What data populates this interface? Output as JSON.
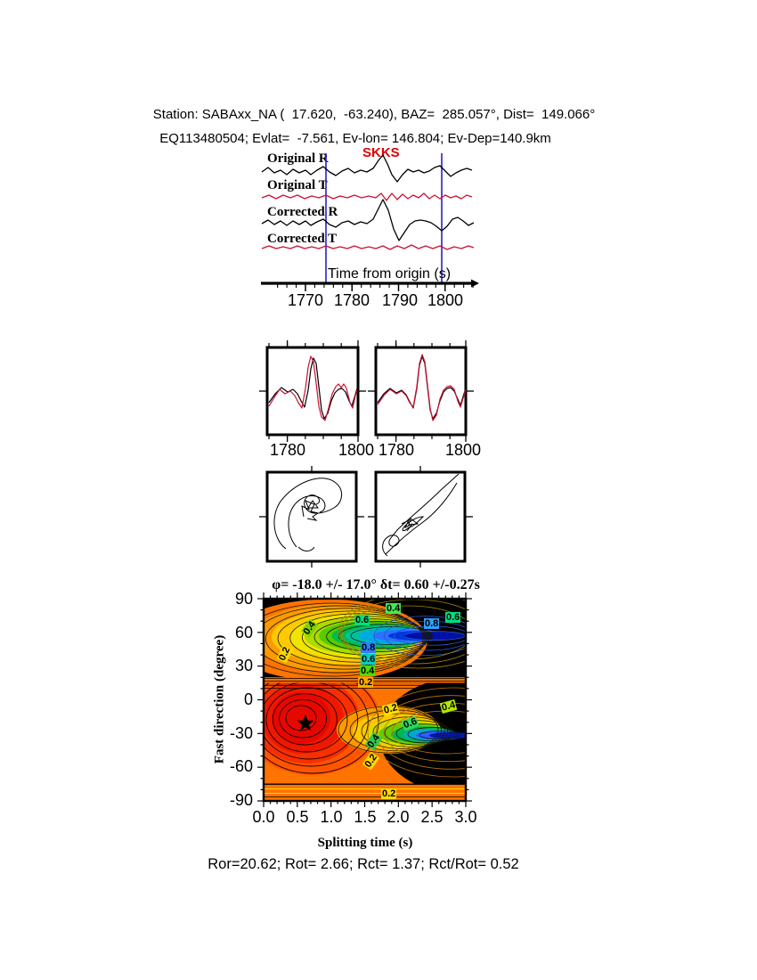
{
  "header": {
    "line1": "Station: SABAxx_NA (  17.620,  -63.240), BAZ=  285.057°, Dist=  149.066°",
    "line2": "EQ113480504; Evlat=  -7.561, Ev-lon= 146.804; Ev-Dep=140.9km"
  },
  "phase_label": "SKKS",
  "trace_labels": [
    "Original R",
    "Original T",
    "Corrected R",
    "Corrected T"
  ],
  "time_axis": {
    "label": "Time from origin (s)",
    "ticks": [
      "1770",
      "1780",
      "1790",
      "1800"
    ]
  },
  "comparison_ticks": [
    "1780",
    "1800",
    "1780",
    "1800"
  ],
  "result_title": "φ= -18.0 +/- 17.0° δt= 0.60 +/-0.27s",
  "contour": {
    "ylabel": "Fast direction (degree)",
    "xlabel": "Splitting time (s)",
    "yticks": [
      "90",
      "60",
      "30",
      "0",
      "-30",
      "-60",
      "-90"
    ],
    "xticks": [
      "0.0",
      "0.5",
      "1.0",
      "1.5",
      "2.0",
      "2.5",
      "3.0"
    ],
    "labels": [
      "0.2",
      "0.4",
      "0.6",
      "0.4",
      "0.8",
      "0.6",
      "0.8",
      "0.6",
      "0.4",
      "0.2",
      "0.2",
      "0.4",
      "0.6",
      "0.4",
      "0.2",
      "0.2"
    ]
  },
  "footer": "Ror=20.62; Rot= 2.66; Rct= 1.37; Rct/Rot= 0.52",
  "colors": {
    "trace_red": "#cc1133",
    "window_marker_blue": "#2323c8",
    "phase_label_red": "#e00000",
    "star_black": "#000000"
  },
  "results": {
    "Ror": 20.62,
    "Rot": 2.66,
    "Rct": 1.37,
    "Rct_over_Rot": 0.52
  },
  "chart_data": [
    {
      "type": "line",
      "panel": "seismograms",
      "phase": "SKKS",
      "series": [
        "Original R",
        "Original T",
        "Corrected R",
        "Corrected T"
      ],
      "xlabel": "Time from origin (s)",
      "xticks": [
        1770,
        1780,
        1790,
        1800
      ],
      "window_s": [
        1774,
        1799
      ]
    },
    {
      "type": "line",
      "panel": "waveform-overlay",
      "xticks_left": [
        1780,
        1800
      ],
      "xticks_right": [
        1780,
        1800
      ],
      "series": [
        "black",
        "red"
      ]
    },
    {
      "type": "line",
      "panel": "particle-motion",
      "panels": 2
    },
    {
      "type": "heatmap",
      "panel": "splitting-error-surface",
      "title": "φ= -18.0 +/- 17.0° δt= 0.60 +/-0.27s",
      "xlabel": "Splitting time (s)",
      "ylabel": "Fast direction (degree)",
      "xlim": [
        0.0,
        3.0
      ],
      "ylim": [
        -90,
        90
      ],
      "xticks": [
        0.0,
        0.5,
        1.0,
        1.5,
        2.0,
        2.5,
        3.0
      ],
      "yticks": [
        90,
        60,
        30,
        0,
        -30,
        -60,
        -90
      ],
      "labeled_contour_levels": [
        0.2,
        0.4,
        0.6,
        0.8
      ],
      "best_fit": {
        "fast_direction_deg": -18.0,
        "fast_direction_err_deg": 17.0,
        "splitting_time_s": 0.6,
        "splitting_time_err_s": 0.27,
        "marker_xy": [
          0.62,
          -20
        ]
      }
    }
  ]
}
